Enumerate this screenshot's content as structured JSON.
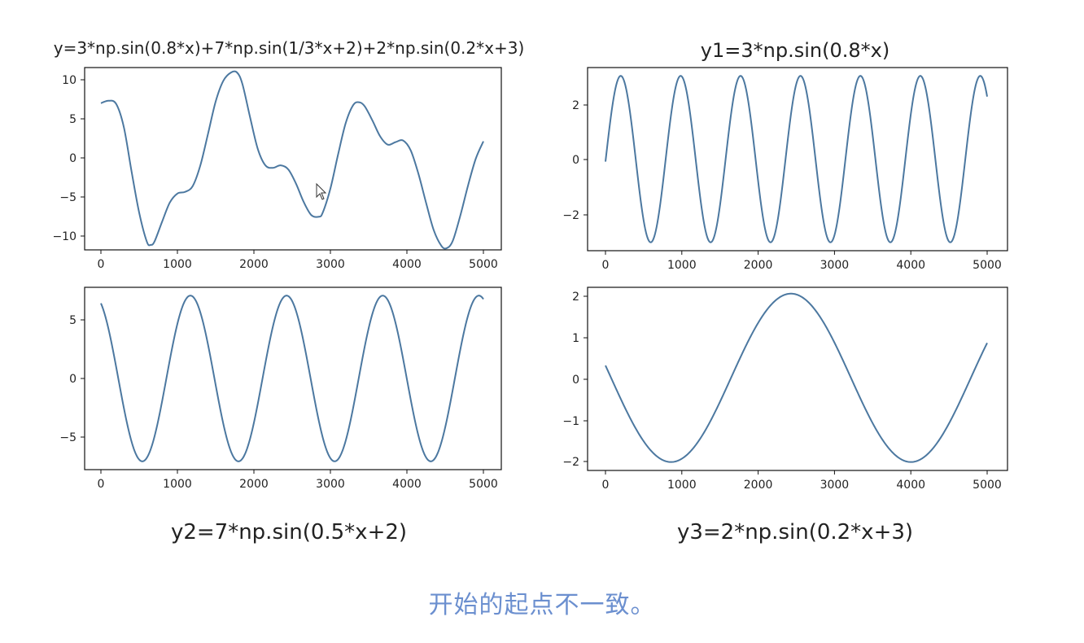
{
  "chart_data": [
    {
      "type": "line",
      "title": "y=3*np.sin(0.8*x)+7*np.sin(1/3*x+2)+2*np.sin(0.2*x+3)",
      "xlabel": "",
      "ylabel": "",
      "xlim": [
        0,
        5000
      ],
      "ylim": [
        -11,
        11
      ],
      "xticks": [
        "0",
        "1000",
        "2000",
        "3000",
        "4000",
        "5000"
      ],
      "yticks": [
        "10",
        "5",
        "0",
        "−5",
        "−10"
      ],
      "series": [
        {
          "name": "y",
          "x": [
            0,
            100,
            200,
            300,
            400,
            500,
            600,
            650,
            700,
            800,
            900,
            1000,
            1100,
            1200,
            1300,
            1400,
            1500,
            1600,
            1700,
            1780,
            1850,
            1950,
            2050,
            2150,
            2250,
            2350,
            2450,
            2550,
            2650,
            2750,
            2850,
            2900,
            3000,
            3100,
            3200,
            3300,
            3380,
            3450,
            3550,
            3650,
            3750,
            3850,
            3950,
            4050,
            4150,
            4250,
            4350,
            4450,
            4520,
            4600,
            4700,
            4800,
            4900,
            5000
          ],
          "y": [
            6.7,
            7.0,
            6.6,
            3.8,
            -1.5,
            -6.5,
            -10.0,
            -10.4,
            -10.0,
            -7.6,
            -5.3,
            -4.2,
            -4.0,
            -3.3,
            -0.8,
            3.0,
            6.9,
            9.4,
            10.4,
            10.4,
            9.0,
            5.0,
            1.2,
            -0.8,
            -1.1,
            -0.8,
            -1.3,
            -3.0,
            -5.2,
            -6.8,
            -7.0,
            -6.5,
            -3.6,
            0.5,
            4.3,
            6.5,
            6.8,
            6.3,
            4.6,
            2.7,
            1.7,
            2.0,
            2.2,
            1.0,
            -1.8,
            -5.3,
            -8.6,
            -10.5,
            -10.8,
            -9.9,
            -6.8,
            -3.2,
            0.0,
            2.1
          ]
        }
      ]
    },
    {
      "type": "line",
      "title": "y1=3*np.sin(0.8*x)",
      "xlabel": "",
      "ylabel": "",
      "xlim": [
        0,
        5000
      ],
      "ylim": [
        -3.3,
        3.3
      ],
      "xticks": [
        "0",
        "1000",
        "2000",
        "3000",
        "4000",
        "5000"
      ],
      "yticks": [
        "2",
        "0",
        "−2"
      ],
      "function": {
        "amplitude": 3,
        "peak_x": 200,
        "period": 785,
        "x_start": 0,
        "x_end": 5000
      },
      "series": [
        {
          "name": "y1",
          "x": [
            0,
            200,
            590,
            985,
            1375,
            1770,
            2160,
            2555,
            2945,
            3340,
            3730,
            4125,
            4515,
            4910,
            5000
          ],
          "y": [
            0,
            3,
            -3,
            3,
            -3,
            3,
            -3,
            3,
            -3,
            3,
            -3,
            3,
            -3,
            3,
            1.8
          ]
        }
      ]
    },
    {
      "type": "line",
      "title": "y2=7*np.sin(0.5*x+2)",
      "xlabel": "",
      "ylabel": "",
      "xlim": [
        0,
        5000
      ],
      "ylim": [
        -7.7,
        7.7
      ],
      "xticks": [
        "0",
        "1000",
        "2000",
        "3000",
        "4000",
        "5000"
      ],
      "yticks": [
        "5",
        "0",
        "−5"
      ],
      "function": {
        "amplitude": 7,
        "peak_x": 1170,
        "period": 1257,
        "x_start": 0,
        "x_end": 5000
      },
      "series": [
        {
          "name": "y2",
          "x": [
            0,
            540,
            1170,
            1800,
            2430,
            3060,
            3690,
            4320,
            4950,
            5000
          ],
          "y": [
            6.4,
            -7,
            7,
            -7,
            7,
            -7,
            7,
            -7,
            7,
            6.4
          ]
        }
      ]
    },
    {
      "type": "line",
      "title": "y3=2*np.sin(0.2*x+3)",
      "xlabel": "",
      "ylabel": "",
      "xlim": [
        0,
        5000
      ],
      "ylim": [
        -2.2,
        2.15
      ],
      "xticks": [
        "0",
        "1000",
        "2000",
        "3000",
        "4000",
        "5000"
      ],
      "yticks": [
        "2",
        "1",
        "0",
        "−1",
        "−2"
      ],
      "function": {
        "amplitude": 2,
        "peak_x": 2430,
        "period": 3142,
        "x_start": 0,
        "x_end": 5000
      },
      "series": [
        {
          "name": "y3",
          "x": [
            0,
            860,
            2430,
            4000,
            5000
          ],
          "y": [
            0.3,
            -2,
            2,
            -2,
            0.95
          ]
        }
      ]
    }
  ],
  "caption": "开始的起点不一致。",
  "colors": {
    "line": "#4c78a0",
    "axes": "#111111",
    "caption": "#6b8fcf"
  }
}
